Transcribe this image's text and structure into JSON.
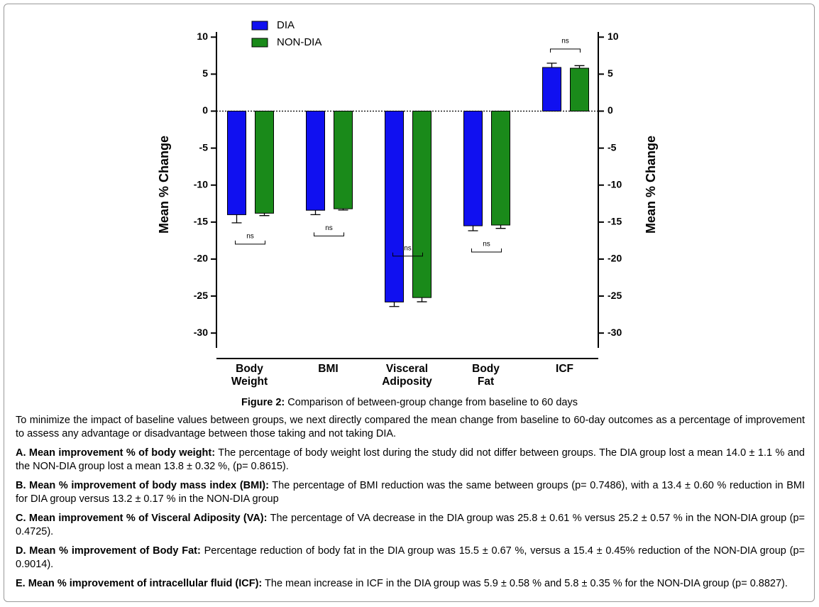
{
  "chart_data": {
    "type": "bar",
    "y_label": "Mean % Change",
    "y2_label": "Mean % Change",
    "categories": [
      "Body\nWeight",
      "BMI",
      "Visceral\nAdiposity",
      "Body\nFat",
      "ICF"
    ],
    "series": [
      {
        "name": "DIA",
        "color": "#1010f0",
        "values": [
          -14.0,
          -13.4,
          -25.8,
          -15.5,
          5.9
        ],
        "errors": [
          1.1,
          0.6,
          0.61,
          0.67,
          0.58
        ]
      },
      {
        "name": "NON-DIA",
        "color": "#1a8a1a",
        "values": [
          -13.8,
          -13.2,
          -25.2,
          -15.4,
          5.8
        ],
        "errors": [
          0.32,
          0.17,
          0.57,
          0.45,
          0.35
        ]
      }
    ],
    "annotations": [
      "ns",
      "ns",
      "ns",
      "ns",
      "ns"
    ],
    "ylim": [
      -32,
      10.7
    ],
    "yticks": [
      10,
      5,
      0,
      -5,
      -10,
      -15,
      -20,
      -25,
      -30
    ],
    "y2lim": [
      -32,
      10.7
    ],
    "y2ticks": [
      10,
      5,
      0,
      -5,
      -10,
      -15,
      -20,
      -25,
      -30
    ],
    "legend": "top-left"
  },
  "paper": {
    "caption": {
      "label": "Figure 2:",
      "text": "Comparison of between-group change from baseline to 60 days"
    },
    "intro": "To minimize the impact of baseline values between groups, we next directly compared the mean change from baseline to 60-day outcomes as a percentage of improvement to assess any advantage or disadvantage between those taking and not taking DIA.",
    "items": [
      {
        "heading": "A. Mean improvement % of body weight:",
        "text": "The percentage of body weight lost during the study did  not differ between groups. The DIA group lost a mean 14.0 ± 1.1 % and the NON-DIA group lost a mean 13.8 ± 0.32 %, (p= 0.8615)."
      },
      {
        "heading": "B. Mean % improvement of body mass index (BMI):",
        "text": "The percentage of BMI reduction was the same between groups (p= 0.7486), with a 13.4 ± 0.60 % reduction in BMI for DIA group versus 13.2 ± 0.17 % in the NON-DIA group"
      },
      {
        "heading": "C. Mean improvement % of Visceral Adiposity (VA):",
        "text": "The percentage of VA decrease in the DIA group was 25.8 ± 0.61 % versus 25.2 ± 0.57 % in the NON-DIA group (p= 0.4725)."
      },
      {
        "heading": "D. Mean % improvement of Body Fat:",
        "text": "Percentage reduction of body fat in the DIA group was 15.5 ± 0.67 %, versus a 15.4 ± 0.45% reduction of the NON-DIA group (p= 0.9014)."
      },
      {
        "heading": "E. Mean % improvement of intracellular fluid (ICF):",
        "text": "The mean increase in ICF in the DIA group was 5.9 ± 0.58 % and 5.8 ± 0.35 % for the NON-DIA group (p= 0.8827)."
      }
    ]
  }
}
